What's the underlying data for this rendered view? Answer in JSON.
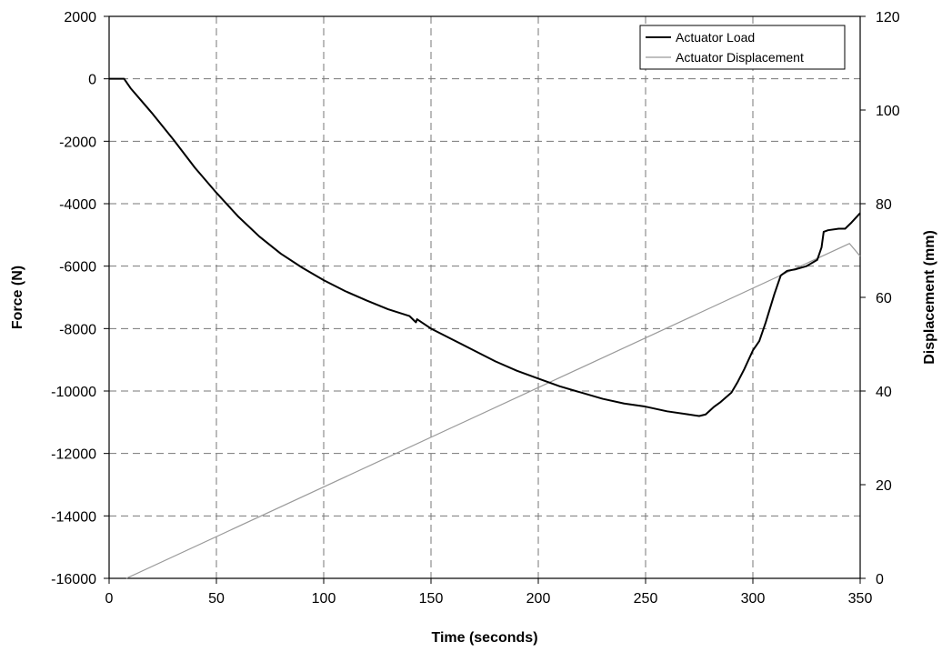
{
  "chart_data": {
    "type": "line",
    "xlabel": "Time (seconds)",
    "ylabel": "Force (N)",
    "y2label": "Displacement (mm)",
    "xlim": [
      0,
      350
    ],
    "ylim": [
      -16000,
      2000
    ],
    "y2lim": [
      0,
      120
    ],
    "x_ticks": [
      "0",
      "50",
      "100",
      "150",
      "200",
      "250",
      "300",
      "350"
    ],
    "y_ticks": [
      "2000",
      "0",
      "-2000",
      "-4000",
      "-6000",
      "-8000",
      "-10000",
      "-12000",
      "-14000",
      "-16000"
    ],
    "y2_ticks": [
      "120",
      "100",
      "80",
      "60",
      "40",
      "20",
      "0"
    ],
    "grid": true,
    "legend_position": "top-right",
    "series": [
      {
        "name": "Actuator Load",
        "axis": "left",
        "color": "#000000",
        "x": [
          0,
          7,
          10,
          15,
          20,
          30,
          40,
          50,
          60,
          70,
          80,
          90,
          100,
          110,
          120,
          130,
          140,
          143,
          143.5,
          150,
          160,
          170,
          180,
          190,
          200,
          210,
          220,
          230,
          240,
          250,
          260,
          270,
          275,
          278,
          282,
          285,
          290,
          293,
          296,
          300,
          303,
          306,
          310,
          313,
          316,
          320,
          325,
          330,
          332,
          333,
          335,
          340,
          343,
          346,
          350
        ],
        "y": [
          0,
          0,
          -300,
          -700,
          -1100,
          -1950,
          -2850,
          -3650,
          -4400,
          -5050,
          -5600,
          -6050,
          -6450,
          -6800,
          -7100,
          -7380,
          -7600,
          -7800,
          -7700,
          -8000,
          -8350,
          -8700,
          -9050,
          -9350,
          -9600,
          -9850,
          -10050,
          -10250,
          -10400,
          -10500,
          -10650,
          -10750,
          -10800,
          -10750,
          -10500,
          -10350,
          -10050,
          -9700,
          -9300,
          -8700,
          -8400,
          -7800,
          -6900,
          -6300,
          -6150,
          -6100,
          -6000,
          -5800,
          -5400,
          -4900,
          -4850,
          -4800,
          -4800,
          -4600,
          -4300
        ]
      },
      {
        "name": "Actuator Displacement",
        "axis": "right",
        "color": "#999999",
        "x": [
          8,
          345,
          350
        ],
        "y": [
          0,
          71.5,
          68.8
        ]
      }
    ]
  }
}
